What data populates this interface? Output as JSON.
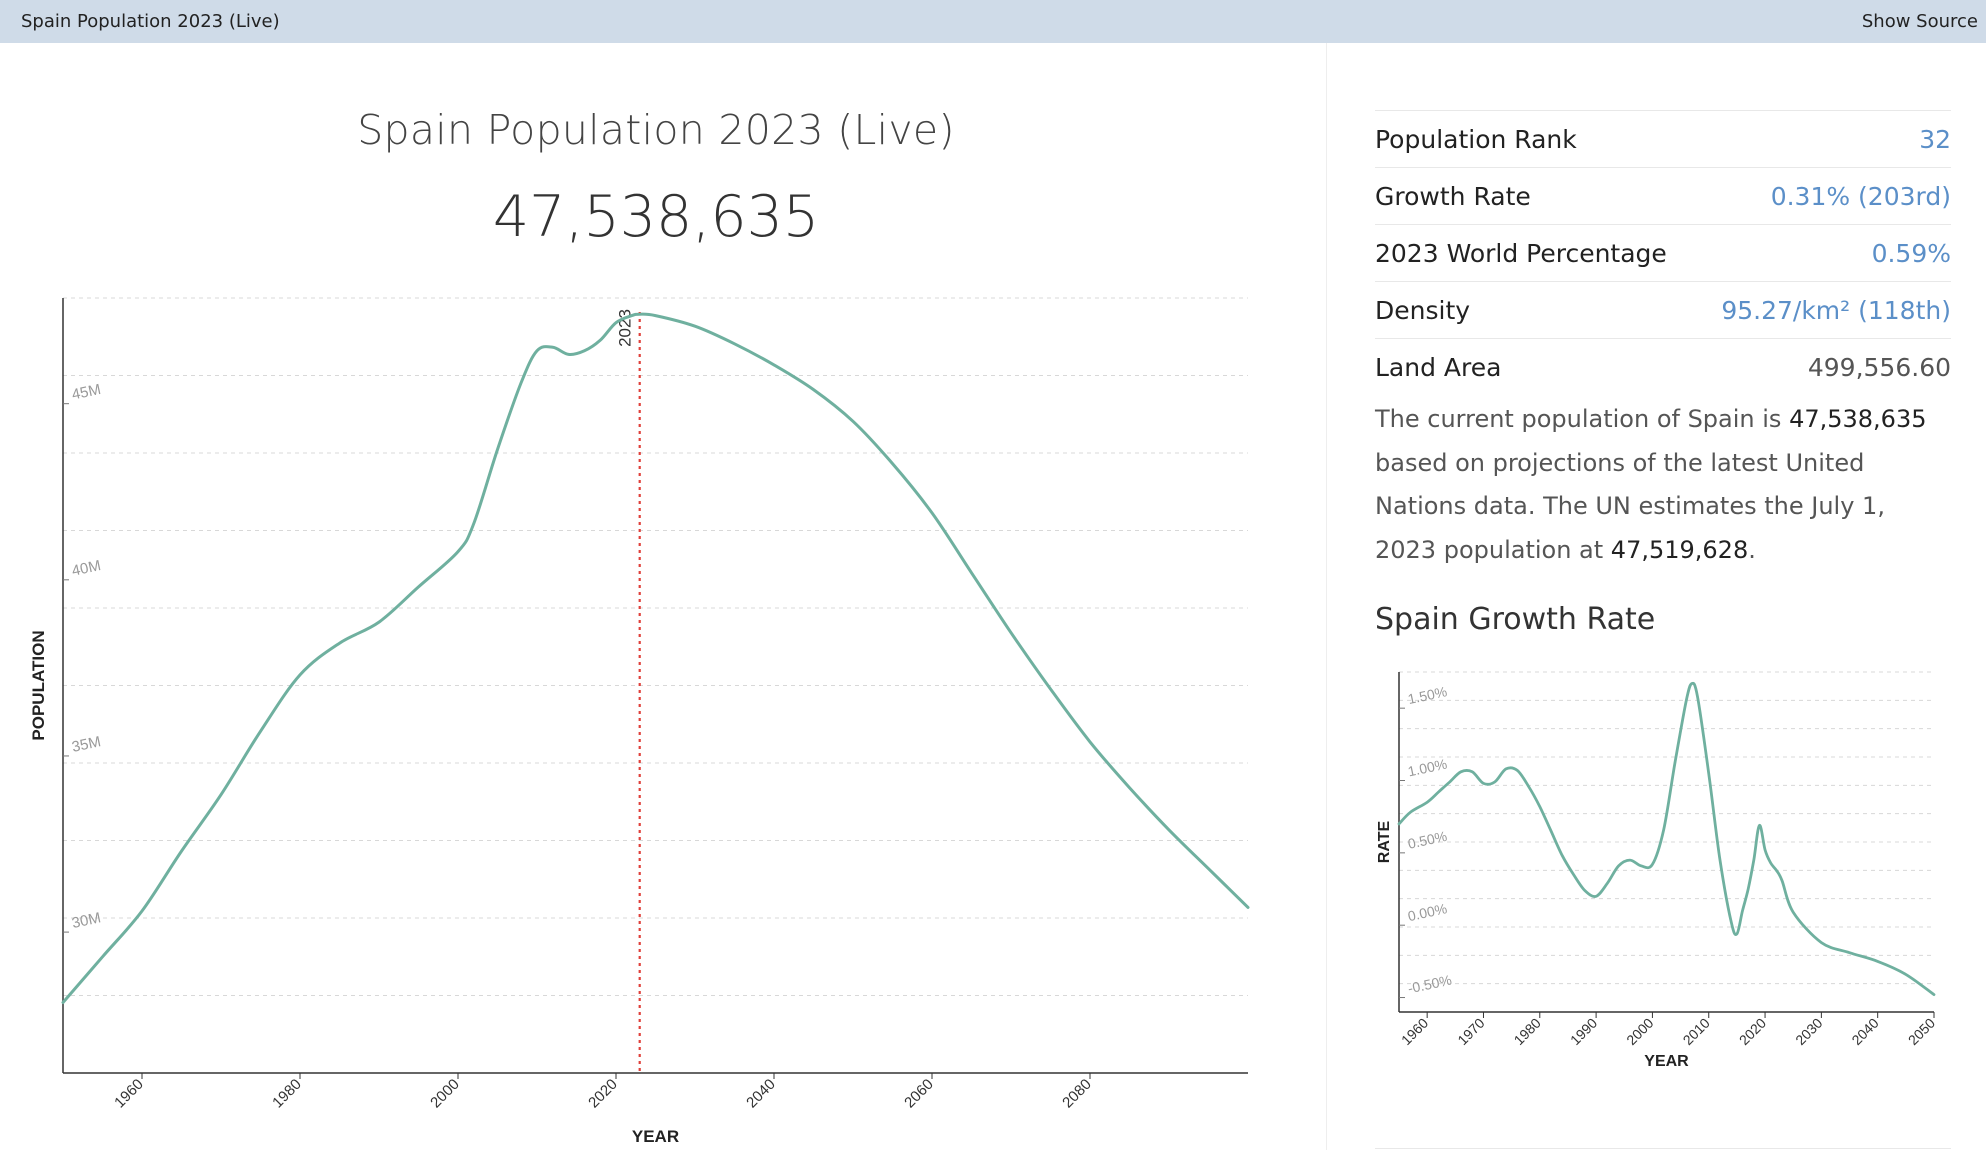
{
  "topbar": {
    "title": "Spain Population 2023 (Live)",
    "show_source": "Show Source"
  },
  "header": {
    "title": "Spain Population 2023 (Live)",
    "live_count": "47,538,635"
  },
  "stats": [
    {
      "label": "Population Rank",
      "value": "32",
      "link": true
    },
    {
      "label": "Growth Rate",
      "value": "0.31% (203rd)",
      "link": true
    },
    {
      "label": "2023 World Percentage",
      "value": "0.59%",
      "link": true
    },
    {
      "label": "Density",
      "value": "95.27/km² (118th)",
      "link": true
    },
    {
      "label": "Land Area",
      "value": "499,556.60",
      "link": false
    }
  ],
  "description": {
    "part1": "The current population of Spain is ",
    "current_population": "47,538,635",
    "part2": " based on projections of the latest United Nations data. The UN estimates the July 1, 2023 population at ",
    "un_estimate": "47,519,628",
    "part3": "."
  },
  "growth_section_title": "Spain Growth Rate",
  "colors": {
    "line": "#6fb09f",
    "marker": "#e0403a",
    "grid": "#d8d8d8",
    "link": "#5b8fc8"
  },
  "chart_data": [
    {
      "type": "line",
      "title": "",
      "xlabel": "YEAR",
      "ylabel": "POPULATION",
      "xlim": [
        1950,
        2100
      ],
      "ylim": [
        26,
        48
      ],
      "x_ticks": [
        1960,
        1980,
        2000,
        2020,
        2040,
        2060,
        2080
      ],
      "y_ticks": [
        30,
        35,
        40,
        45
      ],
      "y_tick_labels": [
        "30M",
        "35M",
        "40M",
        "45M"
      ],
      "marker": {
        "x": 2023,
        "label": "2023"
      },
      "grid": true,
      "series": [
        {
          "x": [
            1950,
            1955,
            1960,
            1965,
            1970,
            1975,
            1980,
            1985,
            1990,
            1995,
            2000,
            2002,
            2005,
            2008,
            2010,
            2012,
            2014,
            2016,
            2018,
            2020,
            2022,
            2023,
            2025,
            2030,
            2035,
            2040,
            2045,
            2050,
            2055,
            2060,
            2065,
            2070,
            2075,
            2080,
            2085,
            2090,
            2095,
            2100
          ],
          "values": [
            28.0,
            29.3,
            30.6,
            32.3,
            33.9,
            35.7,
            37.3,
            38.2,
            38.8,
            39.8,
            40.8,
            41.6,
            43.7,
            45.6,
            46.5,
            46.6,
            46.4,
            46.5,
            46.8,
            47.3,
            47.5,
            47.54,
            47.5,
            47.2,
            46.7,
            46.1,
            45.4,
            44.5,
            43.3,
            41.9,
            40.2,
            38.5,
            36.9,
            35.4,
            34.1,
            32.9,
            31.8,
            30.7
          ]
        }
      ]
    },
    {
      "type": "line",
      "title": "Spain Growth Rate",
      "xlabel": "YEAR",
      "ylabel": "RATE",
      "xlim": [
        1955,
        2050
      ],
      "ylim": [
        -0.6,
        1.75
      ],
      "x_ticks": [
        1960,
        1970,
        1980,
        1990,
        2000,
        2010,
        2020,
        2030,
        2040,
        2050
      ],
      "y_ticks": [
        -0.5,
        0.0,
        0.5,
        1.0,
        1.5
      ],
      "y_tick_labels": [
        "-0.50%",
        "0.00%",
        "0.50%",
        "1.00%",
        "1.50%"
      ],
      "grid": true,
      "series": [
        {
          "x": [
            1955,
            1957,
            1960,
            1962,
            1964,
            1966,
            1968,
            1970,
            1972,
            1974,
            1976,
            1978,
            1980,
            1982,
            1984,
            1986,
            1988,
            1990,
            1992,
            1994,
            1996,
            1998,
            2000,
            2002,
            2004,
            2006,
            2007,
            2008,
            2010,
            2012,
            2014,
            2015,
            2016,
            2017,
            2018,
            2019,
            2020,
            2021,
            2022,
            2023,
            2025,
            2030,
            2035,
            2040,
            2045,
            2050
          ],
          "values": [
            0.7,
            0.78,
            0.85,
            0.92,
            0.99,
            1.06,
            1.06,
            0.98,
            0.99,
            1.08,
            1.07,
            0.96,
            0.82,
            0.65,
            0.48,
            0.35,
            0.24,
            0.2,
            0.29,
            0.41,
            0.45,
            0.41,
            0.42,
            0.66,
            1.12,
            1.55,
            1.67,
            1.58,
            1.05,
            0.45,
            0.02,
            -0.06,
            0.1,
            0.25,
            0.45,
            0.69,
            0.52,
            0.43,
            0.38,
            0.31,
            0.09,
            -0.12,
            -0.19,
            -0.25,
            -0.34,
            -0.48
          ]
        }
      ]
    }
  ]
}
